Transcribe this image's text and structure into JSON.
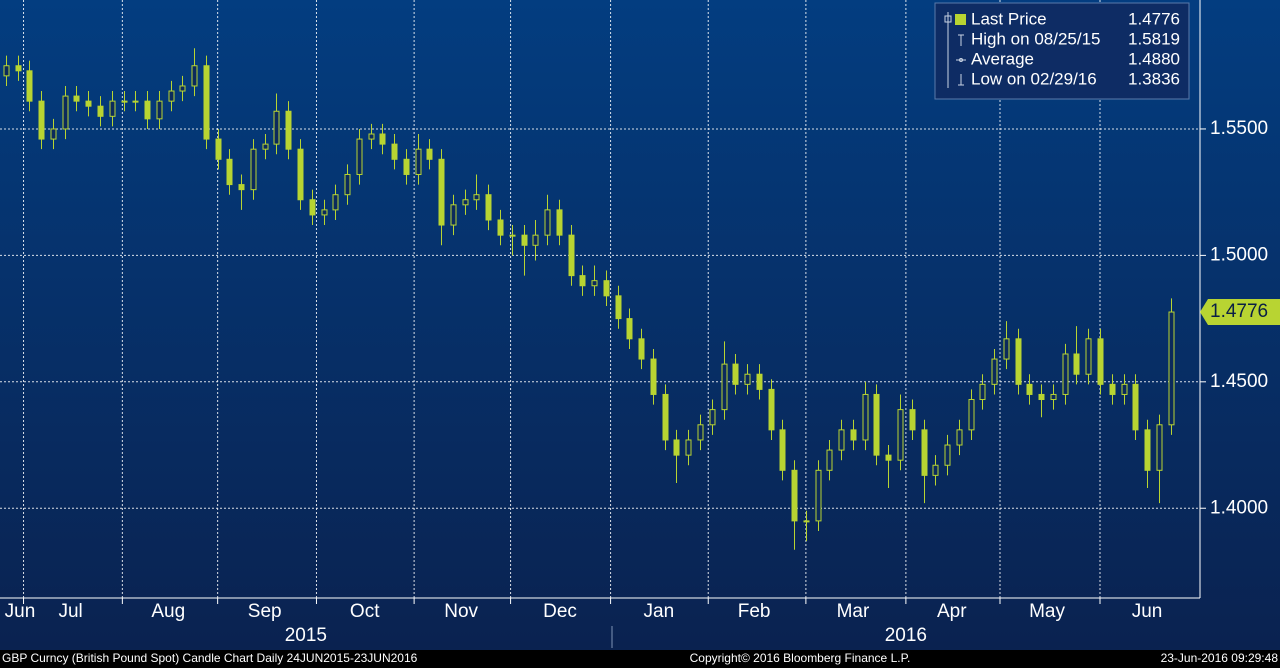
{
  "chart_data": {
    "type": "candlestick",
    "color": "#b8d432",
    "grid": true,
    "xlim": [
      -0.5,
      101.5
    ],
    "ylim": [
      1.3645,
      1.601
    ],
    "yticks": [
      {
        "value": 1.4,
        "label": "1.4000"
      },
      {
        "value": 1.45,
        "label": "1.4500"
      },
      {
        "value": 1.5,
        "label": "1.5000"
      },
      {
        "value": 1.55,
        "label": "1.5500"
      }
    ],
    "xgrid": [
      1.5,
      9.9,
      18.0,
      26.4,
      34.7,
      42.9,
      51.4,
      59.7,
      68.0,
      76.5,
      84.5,
      93.0
    ],
    "xticks": [
      {
        "value": 1.2,
        "label": "Jun"
      },
      {
        "value": 5.5,
        "label": "Jul"
      },
      {
        "value": 13.8,
        "label": "Aug"
      },
      {
        "value": 22.0,
        "label": "Sep"
      },
      {
        "value": 30.5,
        "label": "Oct"
      },
      {
        "value": 38.7,
        "label": "Nov"
      },
      {
        "value": 47.1,
        "label": "Dec"
      },
      {
        "value": 55.5,
        "label": "Jan"
      },
      {
        "value": 63.6,
        "label": "Feb"
      },
      {
        "value": 72.0,
        "label": "Mar"
      },
      {
        "value": 80.4,
        "label": "Apr"
      },
      {
        "value": 88.5,
        "label": "May"
      },
      {
        "value": 97.0,
        "label": "Jun"
      }
    ],
    "year_ticks": [
      {
        "value": 25.5,
        "label": "2015"
      },
      {
        "value": 76.5,
        "label": "2016"
      }
    ],
    "legend": [
      {
        "name": "Last Price",
        "value": "1.4776"
      },
      {
        "name": "High on 08/25/15",
        "value": "1.5819"
      },
      {
        "name": "Average",
        "value": "1.4880"
      },
      {
        "name": "Low on 02/29/16",
        "value": "1.3836"
      }
    ],
    "footer": {
      "left": "GBP Curncy (British Pound Spot) Candle Chart  Daily 24JUN2015-23JUN2016",
      "center": "Copyright© 2016 Bloomberg Finance L.P.",
      "right": "23-Jun-2016 09:29:48"
    },
    "candles": [
      [
        1.571,
        1.579,
        1.567,
        1.575
      ],
      [
        1.575,
        1.579,
        1.569,
        1.573
      ],
      [
        1.573,
        1.577,
        1.557,
        1.561
      ],
      [
        1.561,
        1.565,
        1.542,
        1.546
      ],
      [
        1.546,
        1.554,
        1.542,
        1.55
      ],
      [
        1.55,
        1.567,
        1.546,
        1.563
      ],
      [
        1.563,
        1.567,
        1.557,
        1.561
      ],
      [
        1.561,
        1.565,
        1.555,
        1.559
      ],
      [
        1.559,
        1.563,
        1.551,
        1.555
      ],
      [
        1.555,
        1.565,
        1.551,
        1.561
      ],
      [
        1.561,
        1.565,
        1.557,
        1.561
      ],
      [
        1.561,
        1.565,
        1.557,
        1.561
      ],
      [
        1.561,
        1.565,
        1.55,
        1.554
      ],
      [
        1.554,
        1.565,
        1.55,
        1.561
      ],
      [
        1.561,
        1.569,
        1.557,
        1.565
      ],
      [
        1.565,
        1.571,
        1.561,
        1.567
      ],
      [
        1.567,
        1.5819,
        1.563,
        1.575
      ],
      [
        1.575,
        1.579,
        1.542,
        1.546
      ],
      [
        1.546,
        1.55,
        1.534,
        1.538
      ],
      [
        1.538,
        1.542,
        1.524,
        1.528
      ],
      [
        1.528,
        1.532,
        1.518,
        1.526
      ],
      [
        1.526,
        1.546,
        1.522,
        1.542
      ],
      [
        1.542,
        1.548,
        1.538,
        1.544
      ],
      [
        1.544,
        1.564,
        1.54,
        1.557
      ],
      [
        1.557,
        1.561,
        1.538,
        1.542
      ],
      [
        1.542,
        1.546,
        1.518,
        1.522
      ],
      [
        1.522,
        1.526,
        1.512,
        1.516
      ],
      [
        1.516,
        1.522,
        1.512,
        1.518
      ],
      [
        1.518,
        1.528,
        1.514,
        1.524
      ],
      [
        1.524,
        1.536,
        1.52,
        1.532
      ],
      [
        1.532,
        1.55,
        1.528,
        1.546
      ],
      [
        1.546,
        1.552,
        1.542,
        1.548
      ],
      [
        1.548,
        1.552,
        1.54,
        1.544
      ],
      [
        1.544,
        1.548,
        1.534,
        1.538
      ],
      [
        1.538,
        1.542,
        1.528,
        1.532
      ],
      [
        1.532,
        1.548,
        1.528,
        1.542
      ],
      [
        1.542,
        1.546,
        1.534,
        1.538
      ],
      [
        1.538,
        1.542,
        1.504,
        1.512
      ],
      [
        1.512,
        1.524,
        1.508,
        1.52
      ],
      [
        1.52,
        1.526,
        1.516,
        1.522
      ],
      [
        1.522,
        1.532,
        1.518,
        1.524
      ],
      [
        1.524,
        1.528,
        1.51,
        1.514
      ],
      [
        1.514,
        1.518,
        1.504,
        1.508
      ],
      [
        1.508,
        1.512,
        1.5,
        1.508
      ],
      [
        1.508,
        1.512,
        1.492,
        1.504
      ],
      [
        1.504,
        1.514,
        1.498,
        1.508
      ],
      [
        1.508,
        1.524,
        1.504,
        1.518
      ],
      [
        1.518,
        1.522,
        1.504,
        1.508
      ],
      [
        1.508,
        1.512,
        1.488,
        1.492
      ],
      [
        1.492,
        1.496,
        1.484,
        1.488
      ],
      [
        1.488,
        1.496,
        1.484,
        1.49
      ],
      [
        1.49,
        1.494,
        1.48,
        1.484
      ],
      [
        1.484,
        1.488,
        1.471,
        1.475
      ],
      [
        1.475,
        1.479,
        1.463,
        1.467
      ],
      [
        1.467,
        1.471,
        1.455,
        1.459
      ],
      [
        1.459,
        1.463,
        1.441,
        1.445
      ],
      [
        1.445,
        1.449,
        1.423,
        1.427
      ],
      [
        1.427,
        1.431,
        1.41,
        1.421
      ],
      [
        1.421,
        1.431,
        1.417,
        1.427
      ],
      [
        1.427,
        1.437,
        1.423,
        1.433
      ],
      [
        1.433,
        1.443,
        1.429,
        1.439
      ],
      [
        1.439,
        1.466,
        1.435,
        1.457
      ],
      [
        1.457,
        1.461,
        1.445,
        1.449
      ],
      [
        1.449,
        1.457,
        1.445,
        1.453
      ],
      [
        1.453,
        1.457,
        1.443,
        1.447
      ],
      [
        1.447,
        1.451,
        1.427,
        1.431
      ],
      [
        1.431,
        1.435,
        1.411,
        1.415
      ],
      [
        1.415,
        1.419,
        1.3836,
        1.395
      ],
      [
        1.395,
        1.399,
        1.387,
        1.395
      ],
      [
        1.395,
        1.419,
        1.391,
        1.415
      ],
      [
        1.415,
        1.427,
        1.411,
        1.423
      ],
      [
        1.423,
        1.435,
        1.419,
        1.431
      ],
      [
        1.431,
        1.435,
        1.423,
        1.427
      ],
      [
        1.427,
        1.45,
        1.423,
        1.445
      ],
      [
        1.445,
        1.449,
        1.417,
        1.421
      ],
      [
        1.421,
        1.425,
        1.408,
        1.419
      ],
      [
        1.419,
        1.445,
        1.415,
        1.439
      ],
      [
        1.439,
        1.443,
        1.427,
        1.431
      ],
      [
        1.431,
        1.435,
        1.402,
        1.413
      ],
      [
        1.413,
        1.421,
        1.409,
        1.417
      ],
      [
        1.417,
        1.429,
        1.413,
        1.425
      ],
      [
        1.425,
        1.435,
        1.421,
        1.431
      ],
      [
        1.431,
        1.447,
        1.427,
        1.443
      ],
      [
        1.443,
        1.453,
        1.439,
        1.449
      ],
      [
        1.449,
        1.463,
        1.445,
        1.459
      ],
      [
        1.459,
        1.474,
        1.455,
        1.467
      ],
      [
        1.467,
        1.471,
        1.445,
        1.449
      ],
      [
        1.449,
        1.453,
        1.441,
        1.445
      ],
      [
        1.445,
        1.449,
        1.436,
        1.443
      ],
      [
        1.443,
        1.449,
        1.439,
        1.445
      ],
      [
        1.445,
        1.465,
        1.441,
        1.461
      ],
      [
        1.461,
        1.472,
        1.449,
        1.453
      ],
      [
        1.453,
        1.471,
        1.449,
        1.467
      ],
      [
        1.467,
        1.471,
        1.445,
        1.449
      ],
      [
        1.449,
        1.453,
        1.441,
        1.445
      ],
      [
        1.445,
        1.453,
        1.441,
        1.449
      ],
      [
        1.449,
        1.453,
        1.427,
        1.431
      ],
      [
        1.431,
        1.435,
        1.408,
        1.415
      ],
      [
        1.415,
        1.437,
        1.402,
        1.433
      ],
      [
        1.433,
        1.483,
        1.429,
        1.4776
      ]
    ]
  }
}
